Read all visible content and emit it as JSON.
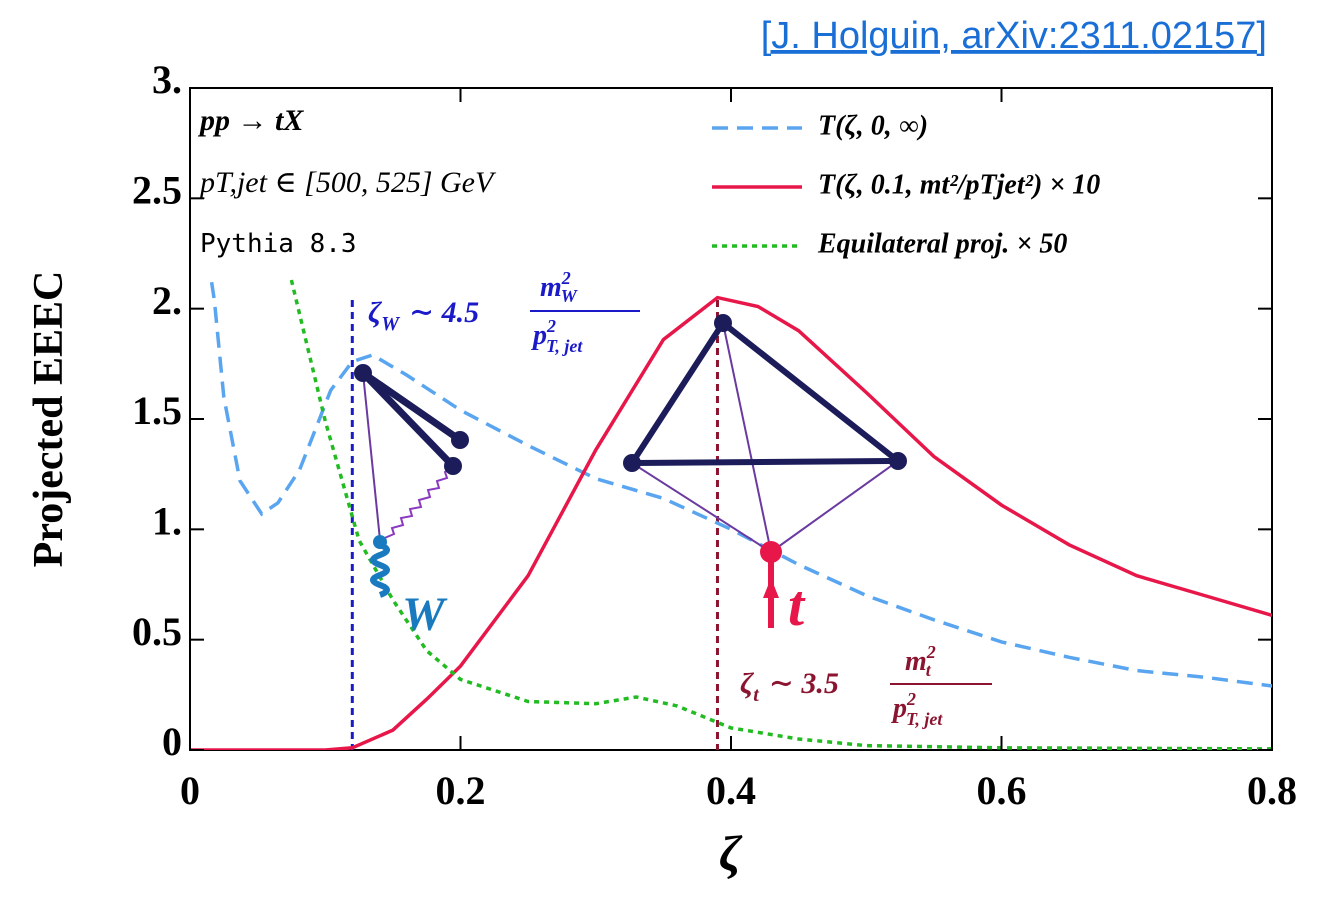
{
  "chart_data": {
    "type": "line",
    "citation": "[J. Holguin, arXiv:2311.02157]",
    "xlabel": "ζ",
    "ylabel": "Projected EEEC",
    "xlim": [
      0,
      0.8
    ],
    "ylim": [
      0,
      3
    ],
    "xticks": [
      0,
      0.2,
      0.4,
      0.6,
      0.8
    ],
    "yticks": [
      0,
      0.5,
      {
        "value": 1,
        "label": "1."
      },
      1.5,
      {
        "value": 2,
        "label": "2."
      },
      2.5,
      {
        "value": 3,
        "label": "3."
      }
    ],
    "legend": "upper right",
    "info": [
      "pp → tX",
      "pT,jet ∈ [500, 525] GeV",
      "Pythia 8.3"
    ],
    "series": [
      {
        "name": "T(ζ, 0, ∞)",
        "color": "#5aa5f0",
        "dash": "dashed",
        "x": [
          0.016,
          0.018,
          0.025,
          0.037,
          0.053,
          0.065,
          0.081,
          0.104,
          0.12,
          0.135,
          0.16,
          0.2,
          0.25,
          0.3,
          0.35,
          0.4,
          0.45,
          0.5,
          0.55,
          0.6,
          0.65,
          0.7,
          0.75,
          0.8
        ],
        "values": [
          2.12,
          2.04,
          1.6,
          1.22,
          1.07,
          1.12,
          1.27,
          1.63,
          1.76,
          1.79,
          1.7,
          1.54,
          1.38,
          1.23,
          1.14,
          1.0,
          0.84,
          0.7,
          0.59,
          0.49,
          0.42,
          0.36,
          0.33,
          0.29
        ]
      },
      {
        "name": "T(ζ, 0.1, mt²/pTjet²) × 10",
        "color": "#e8174a",
        "dash": "solid",
        "x": [
          0,
          0.1,
          0.12,
          0.15,
          0.175,
          0.2,
          0.25,
          0.3,
          0.35,
          0.39,
          0.42,
          0.45,
          0.5,
          0.55,
          0.6,
          0.65,
          0.7,
          0.75,
          0.8
        ],
        "values": [
          0,
          0,
          0.01,
          0.09,
          0.23,
          0.38,
          0.79,
          1.36,
          1.86,
          2.05,
          2.01,
          1.9,
          1.62,
          1.33,
          1.11,
          0.93,
          0.79,
          0.7,
          0.61
        ]
      },
      {
        "name": "Equilateral proj. × 50",
        "color": "#22bb22",
        "dash": "dotted",
        "x": [
          0.075,
          0.1,
          0.125,
          0.15,
          0.175,
          0.2,
          0.25,
          0.3,
          0.33,
          0.36,
          0.4,
          0.45,
          0.5,
          0.6,
          0.8
        ],
        "values": [
          2.13,
          1.49,
          0.95,
          0.68,
          0.45,
          0.32,
          0.22,
          0.21,
          0.24,
          0.2,
          0.1,
          0.05,
          0.02,
          0.01,
          0.005
        ]
      }
    ],
    "vlines": [
      {
        "x": 0.12,
        "color": "#1a1ac8"
      },
      {
        "x": 0.39,
        "color": "#8b1530"
      }
    ],
    "annotations": {
      "zeta_w": {
        "lhs": "ζ",
        "lhs_sub": "W",
        "rel": "∼ 4.5",
        "num": "m",
        "num_sup": "2",
        "num_sub": "W",
        "den": "p",
        "den_sup": "2",
        "den_sub": "T, jet"
      },
      "zeta_t": {
        "lhs": "ζ",
        "lhs_sub": "t",
        "rel": "∼ 3.5",
        "num": "m",
        "num_sup": "2",
        "num_sub": "t",
        "den": "p",
        "den_sup": "2",
        "den_sub": "T, jet"
      },
      "w_label": "W",
      "t_label": "t"
    }
  }
}
